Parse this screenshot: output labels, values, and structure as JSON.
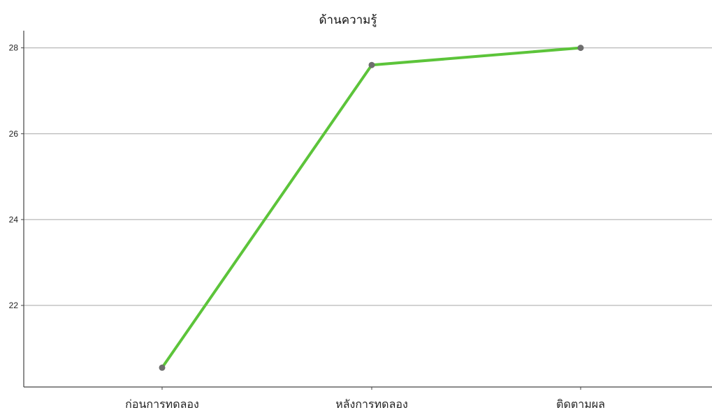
{
  "chart_data": {
    "type": "line",
    "title": "ด้านความรู้",
    "categories": [
      "ก่อนการทดลอง",
      "หลังการทดลอง",
      "ติดตามผล"
    ],
    "series": [
      {
        "values": [
          20.55,
          27.6,
          28.0
        ]
      }
    ],
    "yticks": [
      22,
      24,
      26,
      28
    ],
    "ylim": [
      20.1,
      28.4
    ],
    "grid": true,
    "xlabel": "",
    "ylabel": "",
    "colors": {
      "line": "#5cc43a",
      "marker": "#6e6e6e",
      "grid": "#b8b8b8"
    }
  }
}
